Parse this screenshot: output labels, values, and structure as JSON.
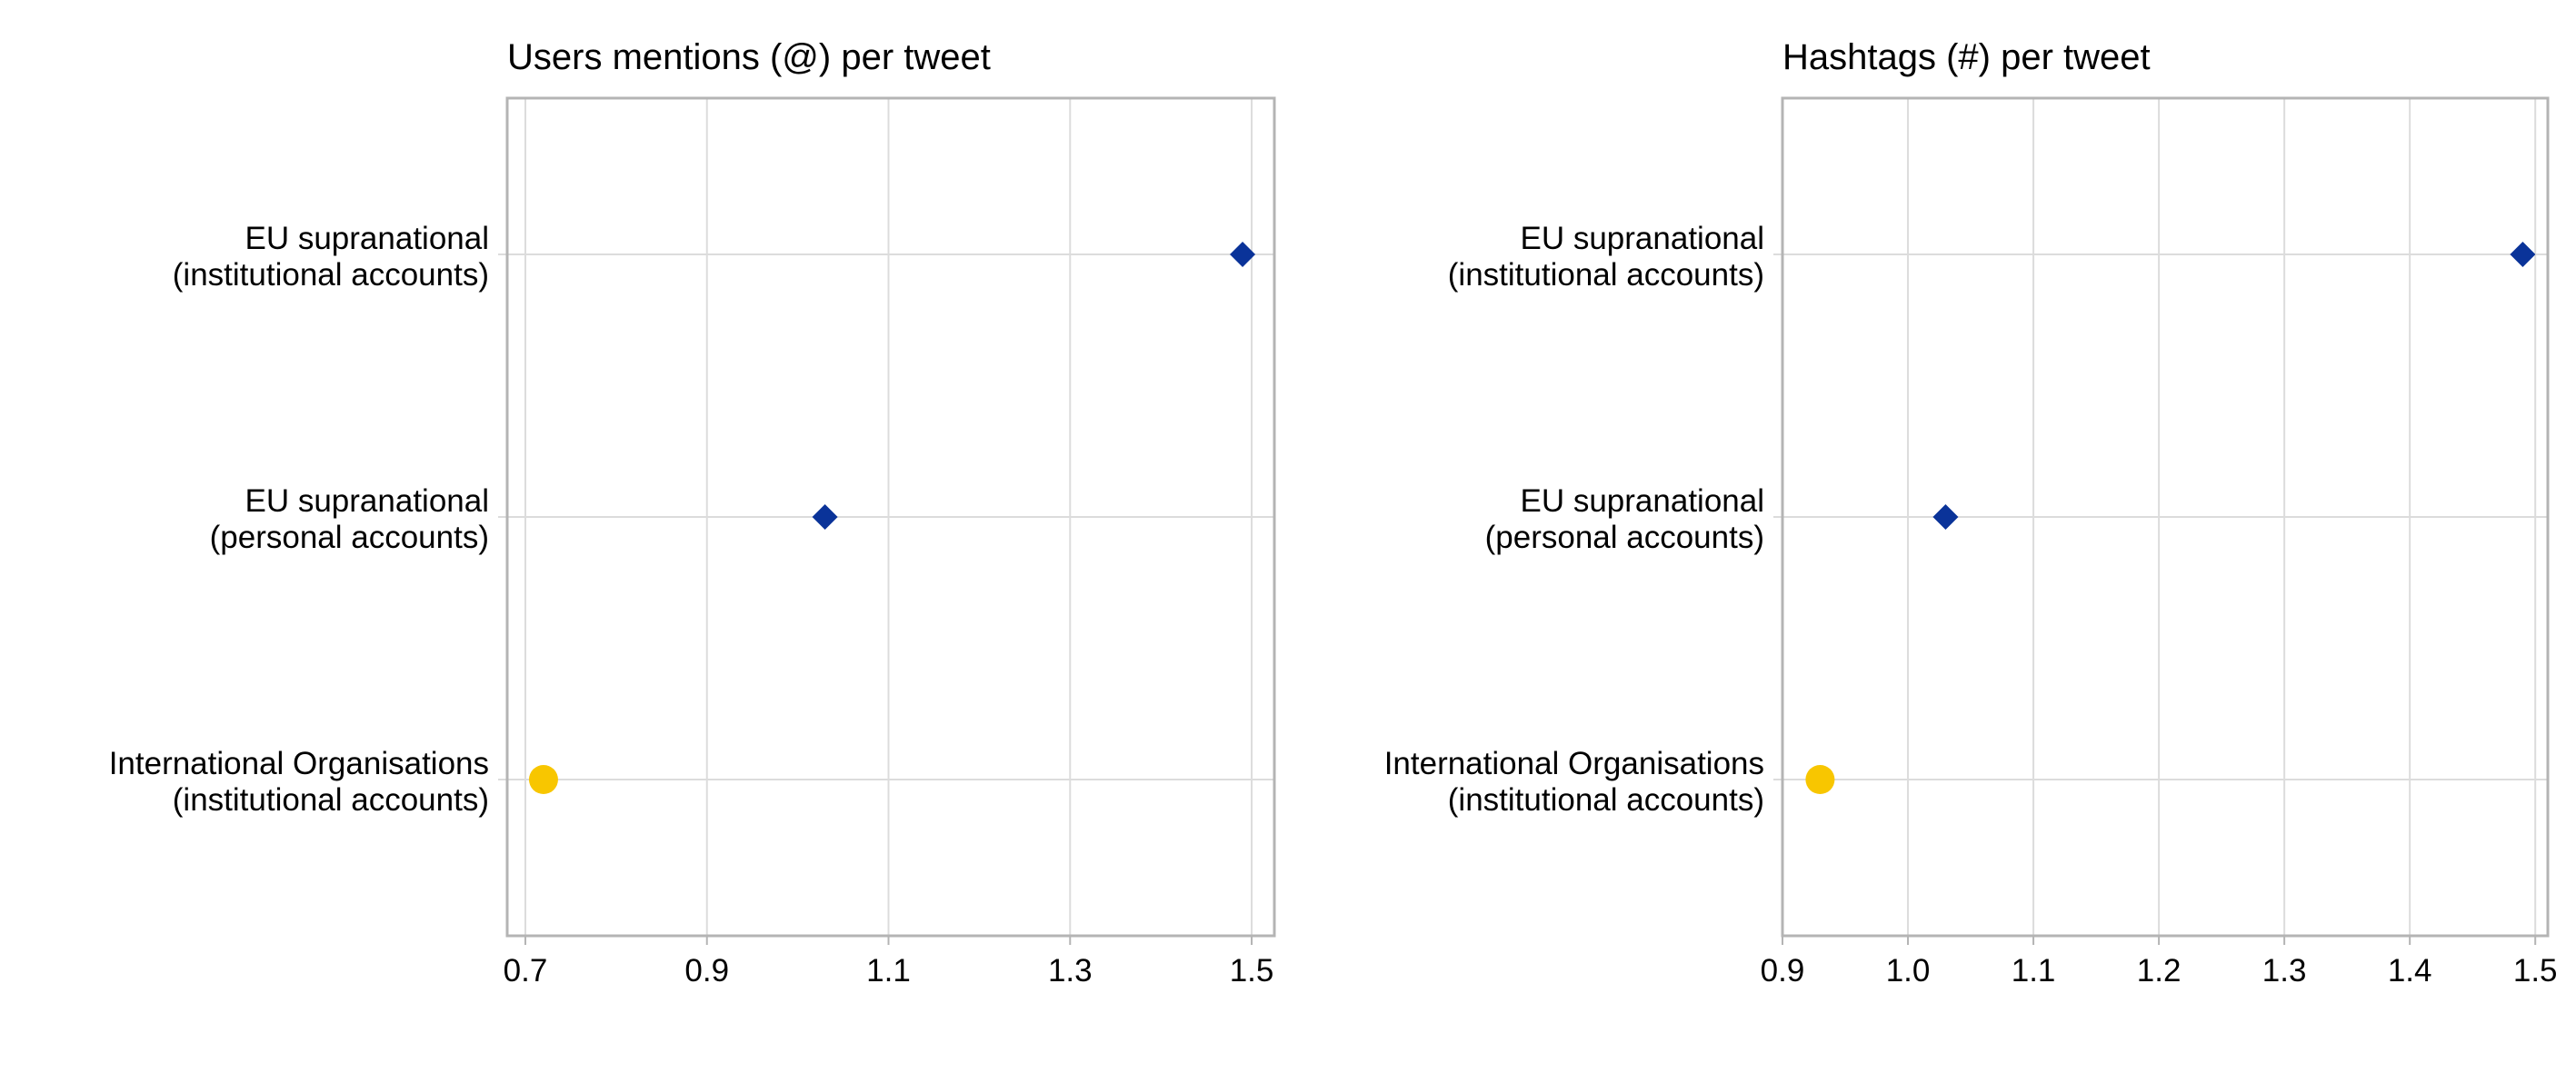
{
  "chart_data": [
    {
      "type": "scatter",
      "title": "Users mentions (@) per tweet",
      "xlabel": "",
      "ylabel": "",
      "xlim": [
        0.68,
        1.525
      ],
      "xticks": [
        0.7,
        0.9,
        1.1,
        1.3,
        1.5
      ],
      "xtick_labels": [
        "0.7",
        "0.9",
        "1.1",
        "1.3",
        "1.5"
      ],
      "grid": true,
      "categories": [
        {
          "line1": "EU supranational",
          "line2": "(institutional accounts)"
        },
        {
          "line1": "EU supranational",
          "line2": "(personal accounts)"
        },
        {
          "line1": "International Organisations",
          "line2": "(institutional accounts)"
        }
      ],
      "points": [
        {
          "category_index": 0,
          "x": 1.49,
          "marker": "diamond",
          "color": "#0a3399"
        },
        {
          "category_index": 1,
          "x": 1.03,
          "marker": "diamond",
          "color": "#0a3399"
        },
        {
          "category_index": 2,
          "x": 0.72,
          "marker": "circle",
          "color": "#f8c600"
        }
      ]
    },
    {
      "type": "scatter",
      "title": "Hashtags (#) per tweet",
      "xlabel": "",
      "ylabel": "",
      "xlim": [
        0.9,
        1.51
      ],
      "xticks": [
        0.9,
        1.0,
        1.1,
        1.2,
        1.3,
        1.4,
        1.5
      ],
      "xtick_labels": [
        "0.9",
        "1.0",
        "1.1",
        "1.2",
        "1.3",
        "1.4",
        "1.5"
      ],
      "grid": true,
      "categories": [
        {
          "line1": "EU supranational",
          "line2": "(institutional accounts)"
        },
        {
          "line1": "EU supranational",
          "line2": "(personal accounts)"
        },
        {
          "line1": "International Organisations",
          "line2": "(institutional accounts)"
        }
      ],
      "points": [
        {
          "category_index": 0,
          "x": 1.49,
          "marker": "diamond",
          "color": "#0a3399"
        },
        {
          "category_index": 1,
          "x": 1.03,
          "marker": "diamond",
          "color": "#0a3399"
        },
        {
          "category_index": 2,
          "x": 0.93,
          "marker": "circle",
          "color": "#f8c600"
        }
      ]
    }
  ],
  "colors": {
    "grid": "#dcdcdc",
    "frame": "#b4b4b4"
  }
}
